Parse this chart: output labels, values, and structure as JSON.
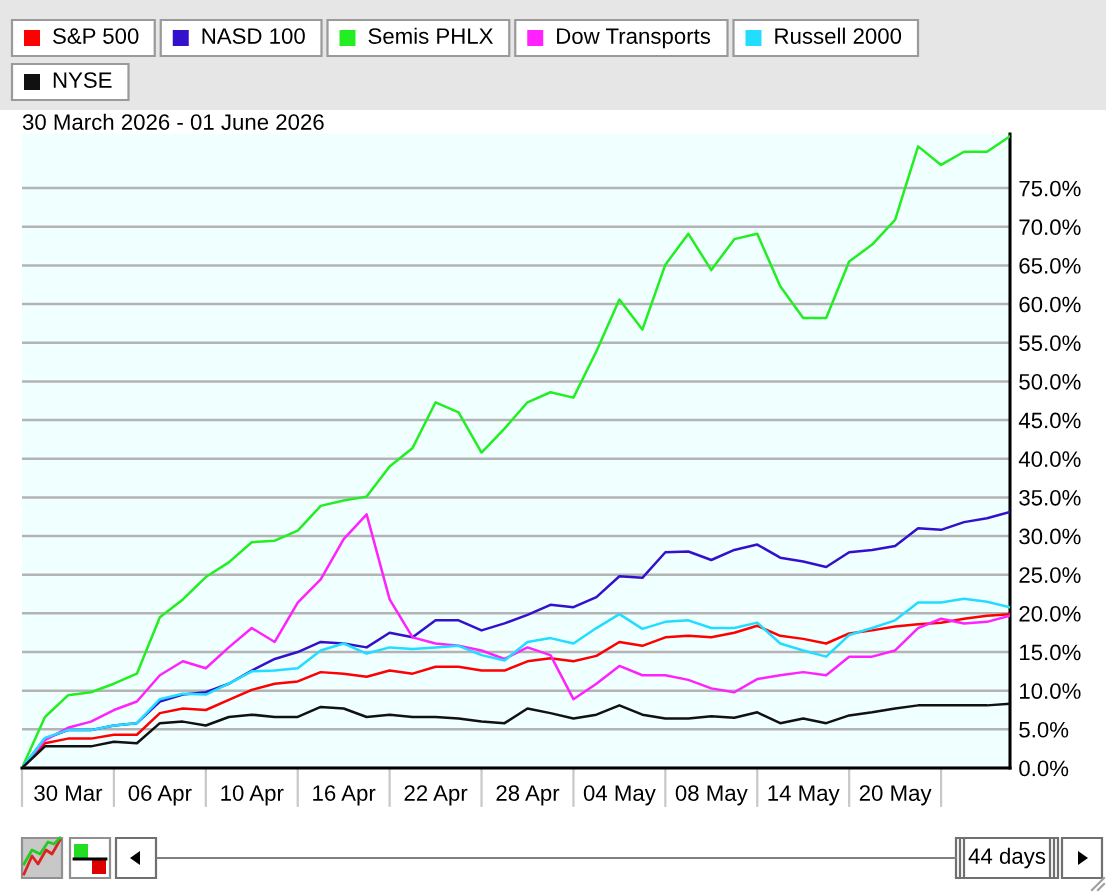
{
  "chart_data": {
    "type": "line",
    "title": "30 March 2026 - 01 June 2026",
    "categories": [
      null,
      null,
      "30 Mar",
      null,
      null,
      null,
      "06 Apr",
      null,
      null,
      null,
      "10 Apr",
      null,
      null,
      null,
      "16 Apr",
      null,
      null,
      null,
      "22 Apr",
      null,
      null,
      null,
      "28 Apr",
      null,
      null,
      null,
      "04 May",
      null,
      null,
      null,
      "08 May",
      null,
      null,
      null,
      "14 May",
      null,
      null,
      null,
      "20 May",
      null,
      null,
      null,
      null,
      null
    ],
    "series": [
      {
        "name": "S&P 500",
        "color": "#ff0000",
        "values": [
          0,
          3.2,
          3.8,
          3.8,
          4.3,
          4.3,
          7.1,
          7.7,
          7.5,
          8.8,
          10.1,
          10.9,
          11.2,
          12.4,
          12.2,
          11.8,
          12.6,
          12.2,
          13.1,
          13.1,
          12.6,
          12.6,
          13.8,
          14.2,
          13.8,
          14.5,
          16.3,
          15.8,
          16.9,
          17.1,
          16.9,
          17.5,
          18.4,
          17.1,
          16.7,
          16.1,
          17.4,
          17.8,
          18.3,
          18.6,
          18.8,
          19.3,
          19.7,
          19.9
        ]
      },
      {
        "name": "NASD 100",
        "color": "#3311cc",
        "values": [
          0,
          3.8,
          4.9,
          4.9,
          5.5,
          5.8,
          8.6,
          9.5,
          9.8,
          10.9,
          12.6,
          14.1,
          15.0,
          16.3,
          16.1,
          15.6,
          17.5,
          16.9,
          19.1,
          19.1,
          17.8,
          18.7,
          19.8,
          21.1,
          20.8,
          22.1,
          24.8,
          24.6,
          27.9,
          28.0,
          26.9,
          28.2,
          28.9,
          27.2,
          26.7,
          26.0,
          27.9,
          28.2,
          28.7,
          31.0,
          30.8,
          31.8,
          32.3,
          33.1
        ]
      },
      {
        "name": "Semis PHLX",
        "color": "#22ee22",
        "values": [
          0,
          6.6,
          9.4,
          9.8,
          10.9,
          12.2,
          19.5,
          21.8,
          24.7,
          26.6,
          29.2,
          29.4,
          30.7,
          33.9,
          34.6,
          35.1,
          39.0,
          41.4,
          47.3,
          46.0,
          40.8,
          43.9,
          47.3,
          48.6,
          47.9,
          53.9,
          60.6,
          56.7,
          65.1,
          69.1,
          64.4,
          68.4,
          69.1,
          62.3,
          58.2,
          58.2,
          65.5,
          67.7,
          70.9,
          80.4,
          78.0,
          79.7,
          79.7,
          81.7
        ]
      },
      {
        "name": "Dow Transports",
        "color": "#ff22ff",
        "values": [
          0,
          3.6,
          5.2,
          6.0,
          7.5,
          8.6,
          12.0,
          13.8,
          12.9,
          15.6,
          18.1,
          16.3,
          21.4,
          24.4,
          29.6,
          32.8,
          21.8,
          16.9,
          16.1,
          15.8,
          15.2,
          14.1,
          15.6,
          14.6,
          8.9,
          10.9,
          13.2,
          12.0,
          12.0,
          11.4,
          10.3,
          9.8,
          11.5,
          12.0,
          12.4,
          12.0,
          14.4,
          14.4,
          15.2,
          18.1,
          19.3,
          18.7,
          18.9,
          19.7
        ]
      },
      {
        "name": "Russell 2000",
        "color": "#22ddff",
        "values": [
          0,
          3.9,
          4.9,
          4.9,
          5.5,
          5.8,
          8.9,
          9.6,
          9.5,
          10.9,
          12.5,
          12.6,
          12.9,
          15.2,
          16.1,
          14.8,
          15.6,
          15.4,
          15.6,
          15.8,
          14.6,
          13.9,
          16.3,
          16.8,
          16.1,
          18.1,
          19.9,
          18.0,
          18.9,
          19.1,
          18.1,
          18.1,
          18.8,
          16.1,
          15.2,
          14.4,
          17.2,
          18.1,
          19.1,
          21.4,
          21.4,
          21.9,
          21.5,
          20.8
        ]
      },
      {
        "name": "NYSE",
        "color": "#111111",
        "values": [
          0,
          2.8,
          2.8,
          2.8,
          3.4,
          3.2,
          5.8,
          6.0,
          5.5,
          6.6,
          6.9,
          6.6,
          6.6,
          7.9,
          7.7,
          6.6,
          6.9,
          6.6,
          6.6,
          6.4,
          6.0,
          5.8,
          7.7,
          7.1,
          6.4,
          6.9,
          8.1,
          6.9,
          6.4,
          6.4,
          6.7,
          6.5,
          7.2,
          5.8,
          6.4,
          5.8,
          6.8,
          7.2,
          7.7,
          8.1,
          8.1,
          8.1,
          8.1,
          8.3
        ]
      }
    ],
    "ylim": [
      0,
      82
    ],
    "yticks": [
      {
        "value": 0,
        "label": "0.0%"
      },
      {
        "value": 5,
        "label": "5.0%"
      },
      {
        "value": 10,
        "label": "10.0%"
      },
      {
        "value": 15,
        "label": "15.0%"
      },
      {
        "value": 20,
        "label": "20.0%"
      },
      {
        "value": 25,
        "label": "25.0%"
      },
      {
        "value": 30,
        "label": "30.0%"
      },
      {
        "value": 35,
        "label": "35.0%"
      },
      {
        "value": 40,
        "label": "40.0%"
      },
      {
        "value": 45,
        "label": "45.0%"
      },
      {
        "value": 50,
        "label": "50.0%"
      },
      {
        "value": 55,
        "label": "55.0%"
      },
      {
        "value": 60,
        "label": "60.0%"
      },
      {
        "value": 65,
        "label": "65.0%"
      },
      {
        "value": 70,
        "label": "70.0%"
      },
      {
        "value": 75,
        "label": "75.0%"
      }
    ],
    "grid": "y",
    "legend": "top",
    "annotations": [
      "44 days"
    ]
  }
}
